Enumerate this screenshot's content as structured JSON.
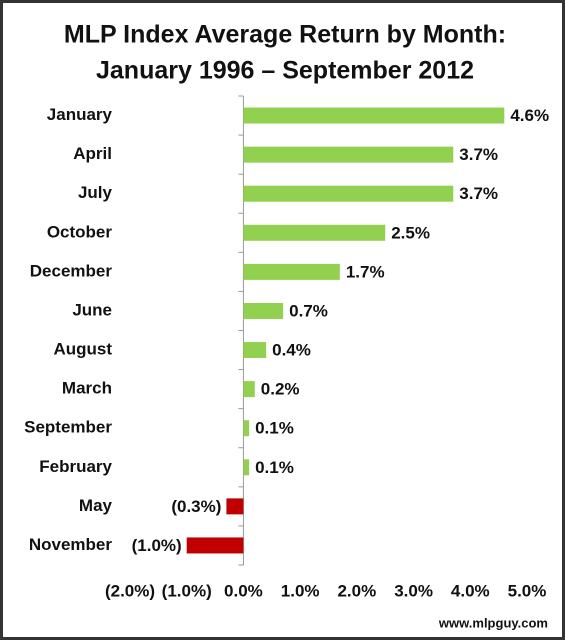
{
  "chart_data": {
    "type": "hbar",
    "title": "MLP Index Average Return by Month:",
    "subtitle": "January 1996 – September 2012",
    "categories": [
      "January",
      "April",
      "July",
      "October",
      "December",
      "June",
      "August",
      "March",
      "September",
      "February",
      "May",
      "November"
    ],
    "values": [
      4.6,
      3.7,
      3.7,
      2.5,
      1.7,
      0.7,
      0.4,
      0.2,
      0.1,
      0.1,
      -0.3,
      -1.0
    ],
    "value_labels": [
      "4.6%",
      "3.7%",
      "3.7%",
      "2.5%",
      "1.7%",
      "0.7%",
      "0.4%",
      "0.2%",
      "0.1%",
      "0.1%",
      "(0.3%)",
      "(1.0%)"
    ],
    "positive_color": "#92d050",
    "negative_color": "#c00000",
    "xlim": [
      -2,
      5
    ],
    "xticks": [
      {
        "value": -2,
        "label": "(2.0%)"
      },
      {
        "value": -1,
        "label": "(1.0%)"
      },
      {
        "value": 0,
        "label": "0.0%"
      },
      {
        "value": 1,
        "label": "1.0%"
      },
      {
        "value": 2,
        "label": "2.0%"
      },
      {
        "value": 3,
        "label": "3.0%"
      },
      {
        "value": 4,
        "label": "4.0%"
      },
      {
        "value": 5,
        "label": "5.0%"
      }
    ],
    "source": "www.mlpguy.com"
  }
}
